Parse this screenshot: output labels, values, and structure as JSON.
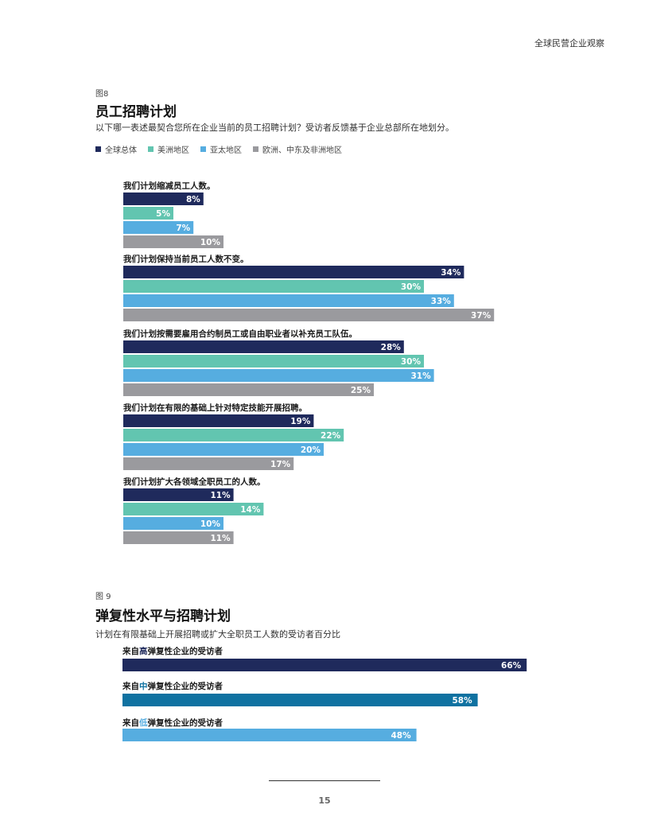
{
  "header": {
    "title": "全球民营企业观察"
  },
  "figure8": {
    "label": "图8",
    "title": "员工招聘计划",
    "subtitle": "以下哪一表述最契合您所在企业当前的员工招聘计划？受访者反馈基于企业总部所在地划分。",
    "legend": [
      {
        "name": "全球总体",
        "color": "#1f2a5c"
      },
      {
        "name": "美洲地区",
        "color": "#62c5b0"
      },
      {
        "name": "亚太地区",
        "color": "#56ade0"
      },
      {
        "name": "欧洲、中东及非洲地区",
        "color": "#9a9a9e"
      }
    ]
  },
  "figure9": {
    "label": "图 9",
    "title": "弹复性水平与招聘计划",
    "subtitle": "计划在有限基础上开展招聘或扩大全职员工人数的受访者百分比"
  },
  "chart_data": [
    {
      "type": "bar",
      "orientation": "horizontal",
      "title": "员工招聘计划",
      "categories": [
        "我们计划缩减员工人数。",
        "我们计划保持当前员工人数不变。",
        "我们计划按需要雇用合约制员工或自由职业者以补充员工队伍。",
        "我们计划在有限的基础上针对特定技能开展招聘。",
        "我们计划扩大各领域全职员工的人数。"
      ],
      "series": [
        {
          "name": "全球总体",
          "color": "#1f2a5c",
          "values": [
            8,
            34,
            28,
            19,
            11
          ],
          "labels": [
            "8%",
            "34%",
            "28%",
            "19%",
            "11%"
          ]
        },
        {
          "name": "美洲地区",
          "color": "#62c5b0",
          "values": [
            5,
            30,
            30,
            22,
            14
          ],
          "labels": [
            "5%",
            "30%",
            "30%",
            "22%",
            "14%"
          ]
        },
        {
          "name": "亚太地区",
          "color": "#56ade0",
          "values": [
            7,
            33,
            31,
            20,
            10
          ],
          "labels": [
            "7%",
            "33%",
            "31%",
            "20%",
            "10%"
          ]
        },
        {
          "name": "欧洲、中东及非洲地区",
          "color": "#9a9a9e",
          "values": [
            10,
            37,
            25,
            17,
            11
          ],
          "labels": [
            "10%",
            "37%",
            "25%",
            "17%",
            "11%"
          ]
        }
      ],
      "unit": "%",
      "legend_position": "top-left",
      "grid": false
    },
    {
      "type": "bar",
      "orientation": "horizontal",
      "title": "弹复性水平与招聘计划",
      "categories": [
        "来自高弹复性企业的受访者",
        "来自中弹复性企业的受访者",
        "来自低弹复性企业的受访者"
      ],
      "category_parts": [
        [
          "来自",
          "高",
          "弹复性企业的受访者"
        ],
        [
          "来自",
          "中",
          "弹复性企业的受访者"
        ],
        [
          "来自",
          "低",
          "弹复性企业的受访者"
        ]
      ],
      "highlight_colors": [
        "#1f2a5c",
        "#0f72a1",
        "#56ade0"
      ],
      "values": [
        66,
        58,
        48
      ],
      "labels": [
        "66%",
        "58%",
        "48%"
      ],
      "colors": [
        "#1f2a5c",
        "#0f72a1",
        "#56ade0"
      ],
      "unit": "%",
      "grid": false
    }
  ],
  "footer": {
    "page_number": "15"
  }
}
